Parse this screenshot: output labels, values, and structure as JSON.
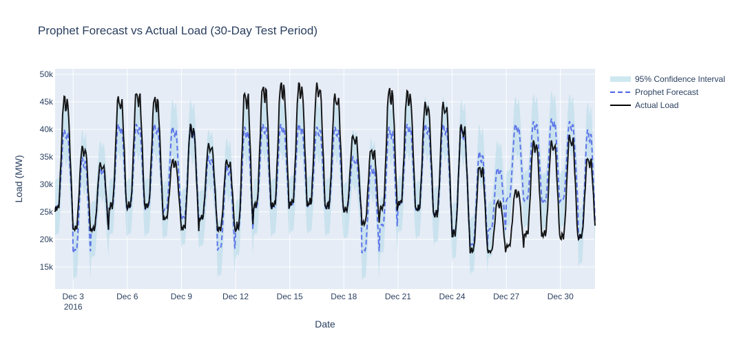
{
  "chart_data": {
    "type": "line",
    "title": "Prophet Forecast vs Actual Load (30-Day Test Period)",
    "xlabel": "Date",
    "ylabel": "Load (MW)",
    "xlim": [
      "2016-12-02",
      "2016-12-31T22:00"
    ],
    "ylim": [
      11000,
      51000
    ],
    "x_ticks": [
      {
        "date": "2016-12-03",
        "label": "Dec 3",
        "sublabel": "2016"
      },
      {
        "date": "2016-12-06",
        "label": "Dec 6"
      },
      {
        "date": "2016-12-09",
        "label": "Dec 9"
      },
      {
        "date": "2016-12-12",
        "label": "Dec 12"
      },
      {
        "date": "2016-12-15",
        "label": "Dec 15"
      },
      {
        "date": "2016-12-18",
        "label": "Dec 18"
      },
      {
        "date": "2016-12-21",
        "label": "Dec 21"
      },
      {
        "date": "2016-12-24",
        "label": "Dec 24"
      },
      {
        "date": "2016-12-27",
        "label": "Dec 27"
      },
      {
        "date": "2016-12-30",
        "label": "Dec 30"
      }
    ],
    "y_ticks": [
      {
        "value": 15000,
        "label": "15k"
      },
      {
        "value": 20000,
        "label": "20k"
      },
      {
        "value": 25000,
        "label": "25k"
      },
      {
        "value": 30000,
        "label": "30k"
      },
      {
        "value": 35000,
        "label": "35k"
      },
      {
        "value": 40000,
        "label": "40k"
      },
      {
        "value": 45000,
        "label": "45k"
      },
      {
        "value": 50000,
        "label": "50k"
      }
    ],
    "grid": true,
    "legend_position": "right",
    "colors": {
      "plot_background": "#e5ecf6",
      "grid": "#ffffff",
      "band": "#add8e6",
      "forecast": "#4a5fe8",
      "actual": "#000000",
      "text": "#2a3f5f"
    },
    "series": [
      {
        "name": "95% Confidence Interval",
        "kind": "band",
        "half_width": 5000
      },
      {
        "name": "Prophet Forecast",
        "kind": "line",
        "style": "dashed"
      },
      {
        "name": "Actual Load",
        "kind": "line",
        "style": "solid"
      }
    ],
    "data": {
      "start": "2016-12-02T00:00",
      "step_hours": 1,
      "days": [
        {
          "date": "2016-12-02",
          "actual_peak": 46000,
          "actual_trough": 25000,
          "forecast_peak": 40000,
          "forecast_trough": 25500
        },
        {
          "date": "2016-12-03",
          "actual_peak": 37000,
          "actual_trough": 21500,
          "forecast_peak": 35000,
          "forecast_trough": 17500
        },
        {
          "date": "2016-12-04",
          "actual_peak": 34000,
          "actual_trough": 21500,
          "forecast_peak": 33000,
          "forecast_trough": 21500
        },
        {
          "date": "2016-12-05",
          "actual_peak": 46000,
          "actual_trough": 25500,
          "forecast_peak": 41000,
          "forecast_trough": 25500
        },
        {
          "date": "2016-12-06",
          "actual_peak": 47000,
          "actual_trough": 25500,
          "forecast_peak": 41000,
          "forecast_trough": 25500
        },
        {
          "date": "2016-12-07",
          "actual_peak": 46000,
          "actual_trough": 25500,
          "forecast_peak": 41000,
          "forecast_trough": 25500
        },
        {
          "date": "2016-12-08",
          "actual_peak": 34500,
          "actual_trough": 23500,
          "forecast_peak": 40500,
          "forecast_trough": 25000
        },
        {
          "date": "2016-12-09",
          "actual_peak": 41000,
          "actual_trough": 21500,
          "forecast_peak": 40500,
          "forecast_trough": 23500
        },
        {
          "date": "2016-12-10",
          "actual_peak": 37500,
          "actual_trough": 23500,
          "forecast_peak": 35000,
          "forecast_trough": 23500
        },
        {
          "date": "2016-12-11",
          "actual_peak": 34500,
          "actual_trough": 21500,
          "forecast_peak": 33500,
          "forecast_trough": 18000
        },
        {
          "date": "2016-12-12",
          "actual_peak": 47000,
          "actual_trough": 21500,
          "forecast_peak": 40500,
          "forecast_trough": 21500
        },
        {
          "date": "2016-12-13",
          "actual_peak": 48000,
          "actual_trough": 25500,
          "forecast_peak": 41000,
          "forecast_trough": 25500
        },
        {
          "date": "2016-12-14",
          "actual_peak": 48500,
          "actual_trough": 25500,
          "forecast_peak": 41000,
          "forecast_trough": 25500
        },
        {
          "date": "2016-12-15",
          "actual_peak": 48500,
          "actual_trough": 26000,
          "forecast_peak": 41000,
          "forecast_trough": 26000
        },
        {
          "date": "2016-12-16",
          "actual_peak": 48500,
          "actual_trough": 26000,
          "forecast_peak": 40500,
          "forecast_trough": 26000
        },
        {
          "date": "2016-12-17",
          "actual_peak": 46500,
          "actual_trough": 25500,
          "forecast_peak": 40500,
          "forecast_trough": 25500
        },
        {
          "date": "2016-12-18",
          "actual_peak": 39000,
          "actual_trough": 25000,
          "forecast_peak": 35000,
          "forecast_trough": 25000
        },
        {
          "date": "2016-12-19",
          "actual_peak": 36500,
          "actual_trough": 22500,
          "forecast_peak": 33500,
          "forecast_trough": 17500
        },
        {
          "date": "2016-12-20",
          "actual_peak": 47500,
          "actual_trough": 25000,
          "forecast_peak": 40500,
          "forecast_trough": 22000
        },
        {
          "date": "2016-12-21",
          "actual_peak": 47000,
          "actual_trough": 26000,
          "forecast_peak": 41000,
          "forecast_trough": 26000
        },
        {
          "date": "2016-12-22",
          "actual_peak": 45000,
          "actual_trough": 25000,
          "forecast_peak": 41000,
          "forecast_trough": 25000
        },
        {
          "date": "2016-12-23",
          "actual_peak": 45000,
          "actual_trough": 24000,
          "forecast_peak": 41000,
          "forecast_trough": 24000
        },
        {
          "date": "2016-12-24",
          "actual_peak": 41000,
          "actual_trough": 20500,
          "forecast_peak": 40500,
          "forecast_trough": 21000
        },
        {
          "date": "2016-12-25",
          "actual_peak": 33500,
          "actual_trough": 17500,
          "forecast_peak": 36000,
          "forecast_trough": 18500
        },
        {
          "date": "2016-12-26",
          "actual_peak": 27000,
          "actual_trough": 17500,
          "forecast_peak": 33000,
          "forecast_trough": 21500
        },
        {
          "date": "2016-12-27",
          "actual_peak": 29000,
          "actual_trough": 18500,
          "forecast_peak": 41000,
          "forecast_trough": 27000
        },
        {
          "date": "2016-12-28",
          "actual_peak": 38000,
          "actual_trough": 20500,
          "forecast_peak": 41500,
          "forecast_trough": 27000
        },
        {
          "date": "2016-12-29",
          "actual_peak": 38000,
          "actual_trough": 20500,
          "forecast_peak": 42000,
          "forecast_trough": 26500
        },
        {
          "date": "2016-12-30",
          "actual_peak": 39000,
          "actual_trough": 20000,
          "forecast_peak": 41500,
          "forecast_trough": 27000
        },
        {
          "date": "2016-12-31",
          "actual_peak": 35000,
          "actual_trough": 20000,
          "forecast_peak": 40000,
          "forecast_trough": 20000
        }
      ]
    }
  }
}
